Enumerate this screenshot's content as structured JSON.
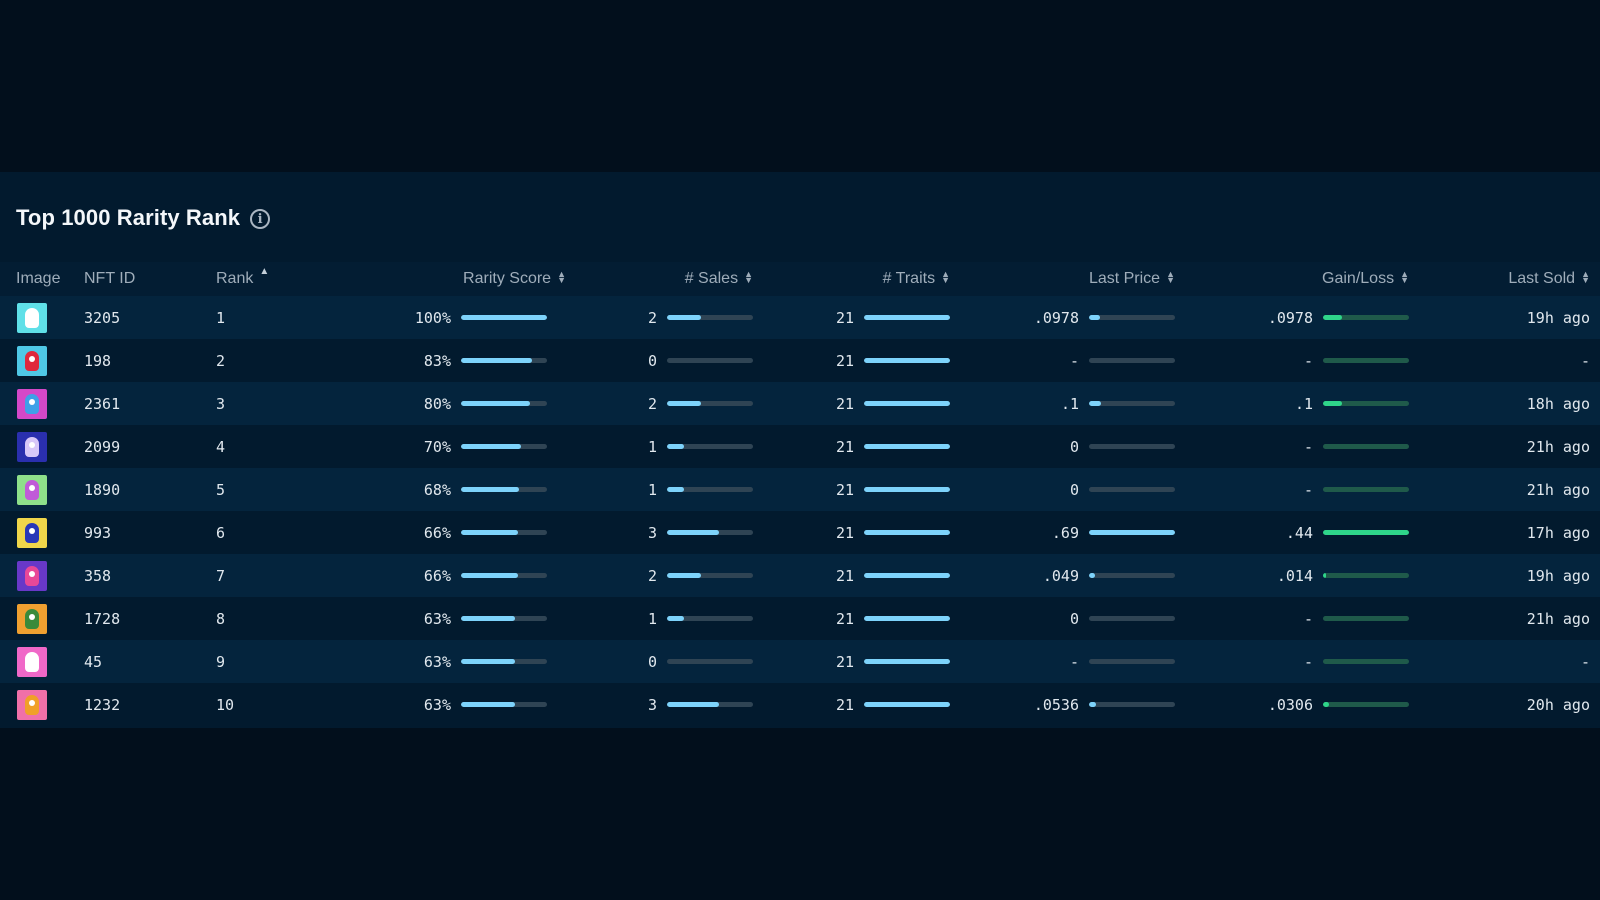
{
  "title": "Top 1000 Rarity Rank",
  "columns": {
    "image": "Image",
    "nft_id": "NFT ID",
    "rank": "Rank",
    "rarity": "Rarity Score",
    "sales": "# Sales",
    "traits": "# Traits",
    "last_price": "Last Price",
    "gain_loss": "Gain/Loss",
    "last_sold": "Last Sold"
  },
  "colors": {
    "bar_blue": "#7dd3fb",
    "bar_green": "#2fd58a",
    "bar_track": "#2f4454"
  },
  "rows": [
    {
      "nft_id": "3205",
      "rank": "1",
      "rarity": "100%",
      "rarity_pct": 100,
      "sales": "2",
      "sales_pct": 40,
      "traits": "21",
      "traits_pct": 100,
      "last_price": ".0978",
      "price_pct": 13,
      "gain_loss": ".0978",
      "gain_pct": 22,
      "last_sold": "19h ago",
      "thumb_bg": "#5fe0e8",
      "thumb_fg": "#ffffff"
    },
    {
      "nft_id": "198",
      "rank": "2",
      "rarity": "83%",
      "rarity_pct": 83,
      "sales": "0",
      "sales_pct": 0,
      "traits": "21",
      "traits_pct": 100,
      "last_price": "-",
      "price_pct": 0,
      "gain_loss": "-",
      "gain_pct": 0,
      "last_sold": "-",
      "thumb_bg": "#4fc8e6",
      "thumb_fg": "#e0283c"
    },
    {
      "nft_id": "2361",
      "rank": "3",
      "rarity": "80%",
      "rarity_pct": 80,
      "sales": "2",
      "sales_pct": 40,
      "traits": "21",
      "traits_pct": 100,
      "last_price": ".1",
      "price_pct": 14,
      "gain_loss": ".1",
      "gain_pct": 22,
      "last_sold": "18h ago",
      "thumb_bg": "#d448c8",
      "thumb_fg": "#3fa0e8"
    },
    {
      "nft_id": "2099",
      "rank": "4",
      "rarity": "70%",
      "rarity_pct": 70,
      "sales": "1",
      "sales_pct": 20,
      "traits": "21",
      "traits_pct": 100,
      "last_price": "0",
      "price_pct": 0,
      "gain_loss": "-",
      "gain_pct": 0,
      "last_sold": "21h ago",
      "thumb_bg": "#2a2fae",
      "thumb_fg": "#d8c8f8"
    },
    {
      "nft_id": "1890",
      "rank": "5",
      "rarity": "68%",
      "rarity_pct": 68,
      "sales": "1",
      "sales_pct": 20,
      "traits": "21",
      "traits_pct": 100,
      "last_price": "0",
      "price_pct": 0,
      "gain_loss": "-",
      "gain_pct": 0,
      "last_sold": "21h ago",
      "thumb_bg": "#8ee08a",
      "thumb_fg": "#c05ad8"
    },
    {
      "nft_id": "993",
      "rank": "6",
      "rarity": "66%",
      "rarity_pct": 66,
      "sales": "3",
      "sales_pct": 60,
      "traits": "21",
      "traits_pct": 100,
      "last_price": ".69",
      "price_pct": 100,
      "gain_loss": ".44",
      "gain_pct": 100,
      "last_sold": "17h ago",
      "thumb_bg": "#f0d64a",
      "thumb_fg": "#2838b8"
    },
    {
      "nft_id": "358",
      "rank": "7",
      "rarity": "66%",
      "rarity_pct": 66,
      "sales": "2",
      "sales_pct": 40,
      "traits": "21",
      "traits_pct": 100,
      "last_price": ".049",
      "price_pct": 7,
      "gain_loss": ".014",
      "gain_pct": 3,
      "last_sold": "19h ago",
      "thumb_bg": "#6838c8",
      "thumb_fg": "#e84898"
    },
    {
      "nft_id": "1728",
      "rank": "8",
      "rarity": "63%",
      "rarity_pct": 63,
      "sales": "1",
      "sales_pct": 20,
      "traits": "21",
      "traits_pct": 100,
      "last_price": "0",
      "price_pct": 0,
      "gain_loss": "-",
      "gain_pct": 0,
      "last_sold": "21h ago",
      "thumb_bg": "#f0a030",
      "thumb_fg": "#3a8a3a"
    },
    {
      "nft_id": "45",
      "rank": "9",
      "rarity": "63%",
      "rarity_pct": 63,
      "sales": "0",
      "sales_pct": 0,
      "traits": "21",
      "traits_pct": 100,
      "last_price": "-",
      "price_pct": 0,
      "gain_loss": "-",
      "gain_pct": 0,
      "last_sold": "-",
      "thumb_bg": "#f068c8",
      "thumb_fg": "#ffffff"
    },
    {
      "nft_id": "1232",
      "rank": "10",
      "rarity": "63%",
      "rarity_pct": 63,
      "sales": "3",
      "sales_pct": 60,
      "traits": "21",
      "traits_pct": 100,
      "last_price": ".0536",
      "price_pct": 8,
      "gain_loss": ".0306",
      "gain_pct": 7,
      "last_sold": "20h ago",
      "thumb_bg": "#f070a8",
      "thumb_fg": "#f0a028"
    }
  ]
}
